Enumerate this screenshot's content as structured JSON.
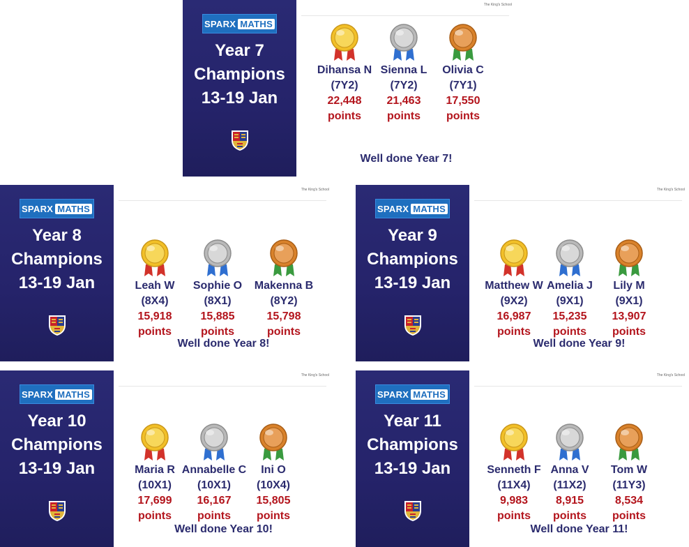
{
  "cards": [
    {
      "logo_a": "SPARX",
      "logo_b": "MATHS",
      "title": [
        "Year 7",
        "Champions",
        "13-19 Jan"
      ],
      "school": "The King's School",
      "winners": [
        {
          "name": "Dihansa N",
          "form": "(7Y2)",
          "points": "22,448",
          "unit": "points",
          "medal": "gold"
        },
        {
          "name": "Sienna L",
          "form": "(7Y2)",
          "points": "21,463",
          "unit": "points",
          "medal": "silver"
        },
        {
          "name": "Olivia C",
          "form": "(7Y1)",
          "points": "17,550",
          "unit": "points",
          "medal": "bronze"
        }
      ],
      "well_done": "Well done Year 7!"
    },
    {
      "logo_a": "SPARX",
      "logo_b": "MATHS",
      "title": [
        "Year 8",
        "Champions",
        "13-19 Jan"
      ],
      "school": "The King's School",
      "winners": [
        {
          "name": "Leah W",
          "form": "(8X4)",
          "points": "15,918",
          "unit": "points",
          "medal": "gold"
        },
        {
          "name": "Sophie O",
          "form": "(8X1)",
          "points": "15,885",
          "unit": "points",
          "medal": "silver"
        },
        {
          "name": "Makenna B",
          "form": "(8Y2)",
          "points": "15,798",
          "unit": "points",
          "medal": "bronze"
        }
      ],
      "well_done": "Well done Year 8!"
    },
    {
      "logo_a": "SPARX",
      "logo_b": "MATHS",
      "title": [
        "Year 9",
        "Champions",
        "13-19 Jan"
      ],
      "school": "The King's School",
      "winners": [
        {
          "name": "Matthew W",
          "form": "(9X2)",
          "points": "16,987",
          "unit": "points",
          "medal": "gold"
        },
        {
          "name": "Amelia J",
          "form": "(9X1)",
          "points": "15,235",
          "unit": "points",
          "medal": "silver"
        },
        {
          "name": "Lily M",
          "form": "(9X1)",
          "points": "13,907",
          "unit": "points",
          "medal": "bronze"
        }
      ],
      "well_done": "Well done Year 9!"
    },
    {
      "logo_a": "SPARX",
      "logo_b": "MATHS",
      "title": [
        "Year 10",
        "Champions",
        "13-19 Jan"
      ],
      "school": "The King's School",
      "winners": [
        {
          "name": "Maria R",
          "form": "(10X1)",
          "points": "17,699",
          "unit": "points",
          "medal": "gold"
        },
        {
          "name": "Annabelle C",
          "form": "(10X1)",
          "points": "16,167",
          "unit": "points",
          "medal": "silver"
        },
        {
          "name": "Ini O",
          "form": "(10X4)",
          "points": "15,805",
          "unit": "points",
          "medal": "bronze"
        }
      ],
      "well_done": "Well done Year 10!"
    },
    {
      "logo_a": "SPARX",
      "logo_b": "MATHS",
      "title": [
        "Year 11",
        "Champions",
        "13-19 Jan"
      ],
      "school": "The King's School",
      "winners": [
        {
          "name": "Senneth F",
          "form": "(11X4)",
          "points": "9,983",
          "unit": "points",
          "medal": "gold"
        },
        {
          "name": "Anna V",
          "form": "(11X2)",
          "points": "8,915",
          "unit": "points",
          "medal": "silver"
        },
        {
          "name": "Tom W",
          "form": "(11Y3)",
          "points": "8,534",
          "unit": "points",
          "medal": "bronze"
        }
      ],
      "well_done": "Well done Year 11!"
    }
  ],
  "colors": {
    "navy": "#25236a",
    "accent_red": "#b3141c",
    "sparx_blue": "#1f6fbf",
    "gold": "#f2c028",
    "silver": "#b9b9b9",
    "bronze": "#d9822b"
  }
}
